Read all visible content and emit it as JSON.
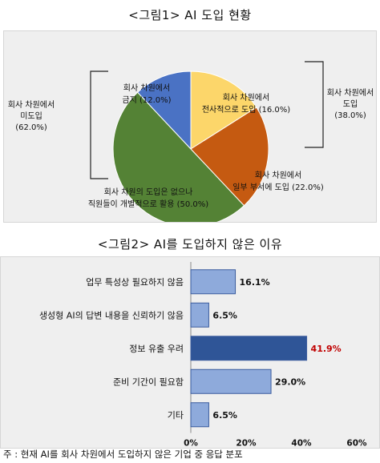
{
  "figure1": {
    "title": "<그림1> AI 도입 현황",
    "chart_data": {
      "type": "pie",
      "slices": [
        {
          "lines": [
            "회사 차원에서",
            "금지 (12.0%)"
          ],
          "value": 12.0,
          "color": "#4a72c4"
        },
        {
          "lines": [
            "회사 차원에서",
            "전사적으로 도입 (16.0%)"
          ],
          "value": 16.0,
          "color": "#fcd66a"
        },
        {
          "lines": [
            "회사 차원에서",
            "일부 부서에 도입 (22.0%)"
          ],
          "value": 22.0,
          "color": "#c55a11"
        },
        {
          "lines": [
            "회사 차원의 도입은 없으나",
            "직원들이 개별적으로 활용 (50.0%)"
          ],
          "value": 50.0,
          "color": "#548235"
        }
      ],
      "group_labels": {
        "adopted": [
          "회사 차원에서",
          "도입",
          "(38.0%)"
        ],
        "not_adopted": [
          "회사 차원에서",
          "미도입",
          "(62.0%)"
        ]
      }
    }
  },
  "figure2": {
    "title": "<그림2> AI를 도입하지 않은 이유",
    "chart_data": {
      "type": "bar",
      "orientation": "horizontal",
      "categories": [
        "업무 특성상 필요하지 않음",
        "생성형 AI의 답변 내용을 신뢰하기 않음",
        "정보 유출 우려",
        "준비 기간이 필요함",
        "기타"
      ],
      "values": [
        16.1,
        6.5,
        41.9,
        29.0,
        6.5
      ],
      "value_labels": [
        "16.1%",
        "6.5%",
        "41.9%",
        "29.0%",
        "6.5%"
      ],
      "highlight_index": 2,
      "xlim": [
        0,
        60
      ],
      "x_ticks": [
        "0%",
        "20%",
        "40%",
        "60%"
      ],
      "colors": {
        "bar": "#8eaadb",
        "bar_highlight": "#2f5597",
        "label_highlight": "#c00000"
      }
    }
  },
  "note": "주 : 현재 AI를 회사 차원에서 도입하지 않은 기업 중 응답 분포"
}
